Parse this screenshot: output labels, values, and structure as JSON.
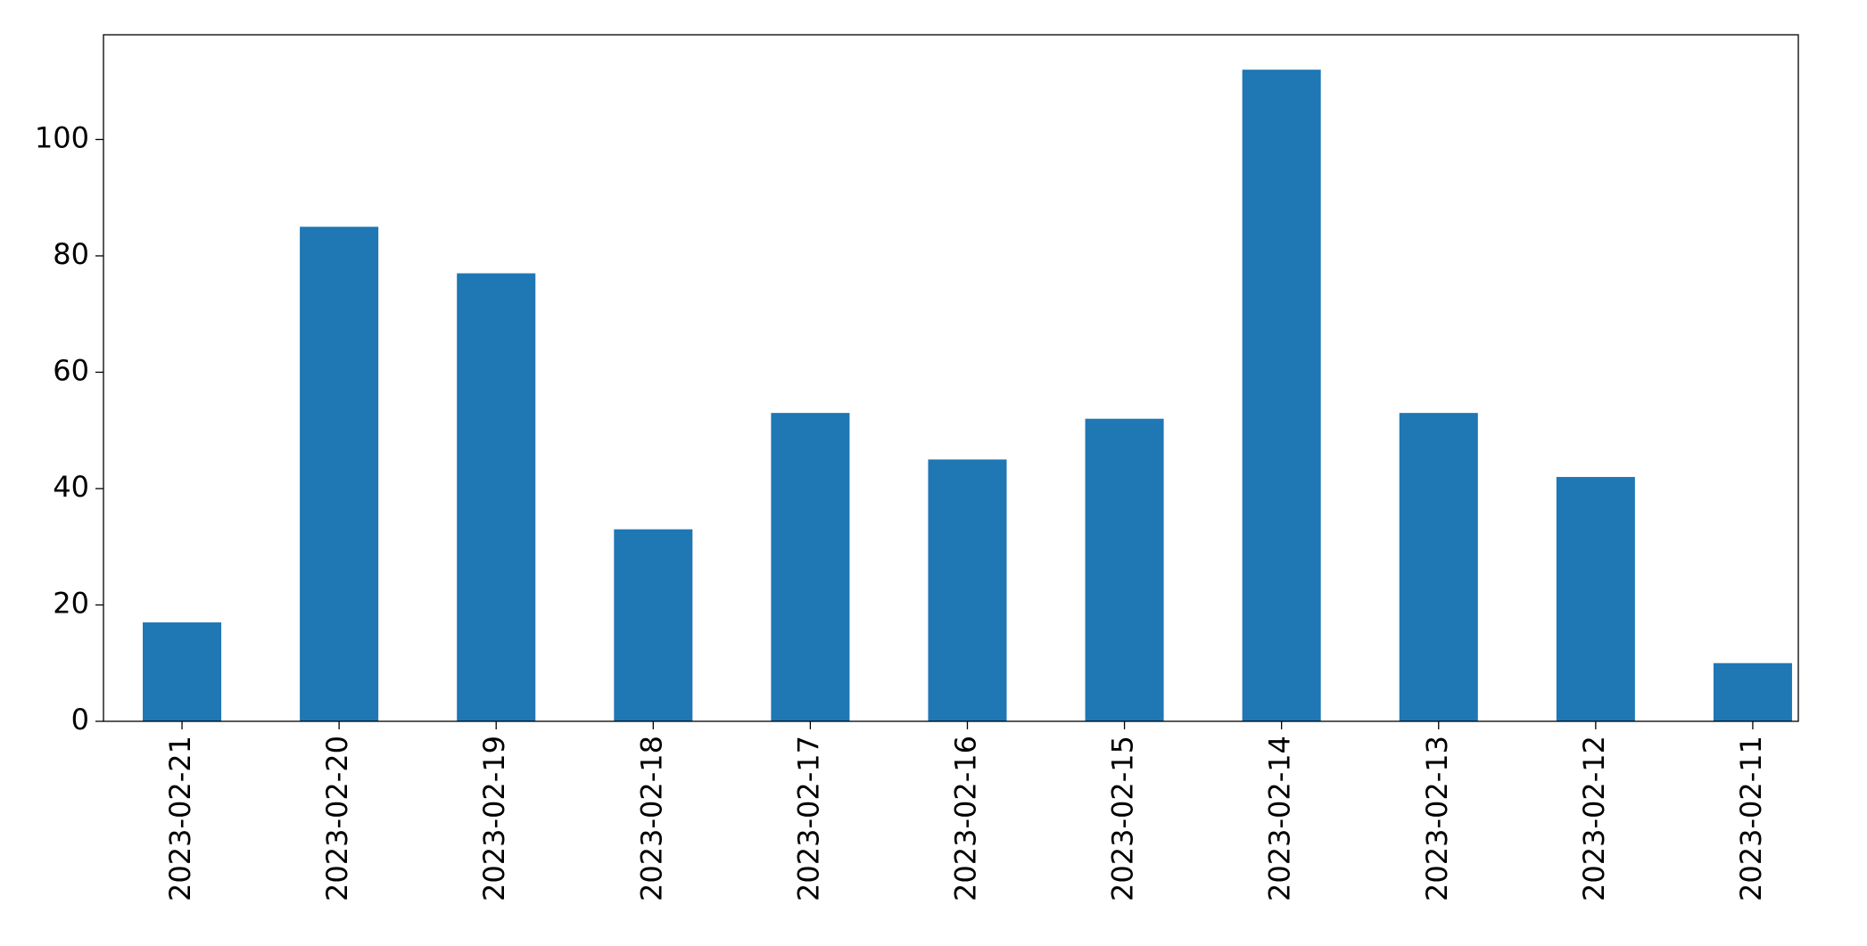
{
  "chart_data": {
    "type": "bar",
    "categories": [
      "2023-02-21",
      "2023-02-20",
      "2023-02-19",
      "2023-02-18",
      "2023-02-17",
      "2023-02-16",
      "2023-02-15",
      "2023-02-14",
      "2023-02-13",
      "2023-02-12",
      "2023-02-11"
    ],
    "values": [
      17,
      85,
      77,
      33,
      53,
      45,
      52,
      112,
      53,
      42,
      10
    ],
    "color": "#1f77b4",
    "ylim": [
      0,
      118
    ],
    "yticks": [
      0,
      20,
      40,
      60,
      80,
      100
    ],
    "grid": false
  }
}
